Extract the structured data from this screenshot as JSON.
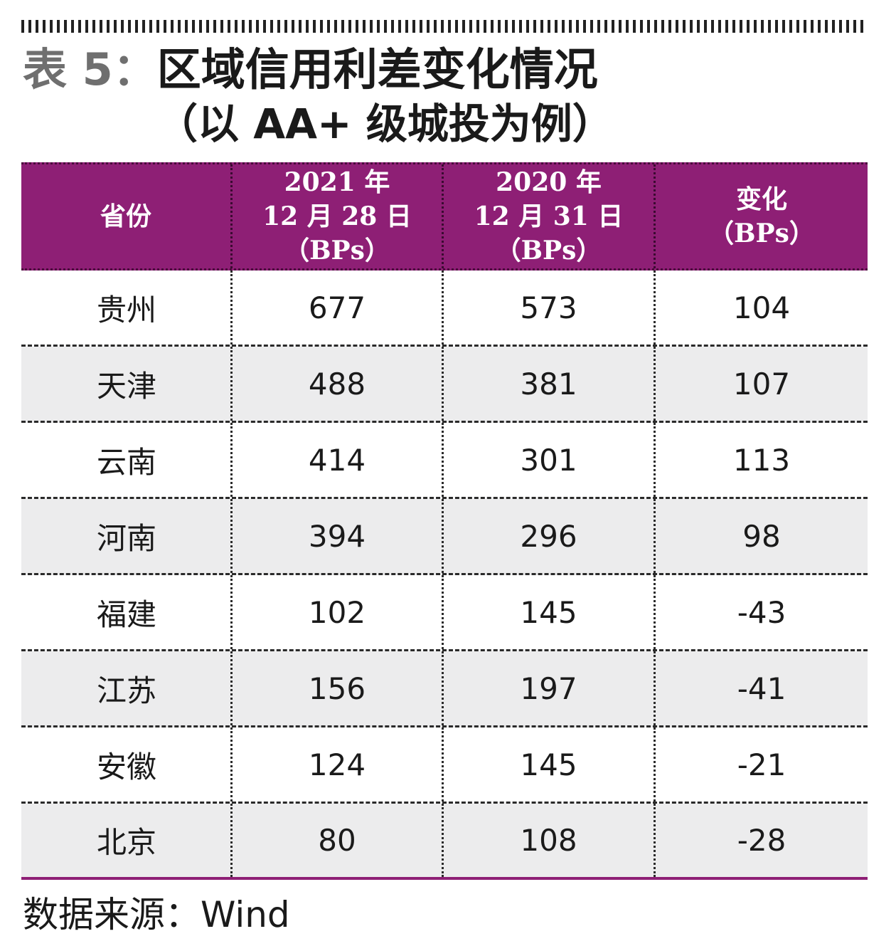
{
  "title": {
    "prefix": "表 5：",
    "main": "区域信用利差变化情况",
    "subtitle": "（以 AA+ 级城投为例）"
  },
  "table": {
    "headers": [
      {
        "lines": [
          "省份"
        ]
      },
      {
        "lines": [
          "2021 年",
          "12 月 28 日",
          "（BPs）"
        ]
      },
      {
        "lines": [
          "2020 年",
          "12 月 31 日",
          "（BPs）"
        ]
      },
      {
        "lines": [
          "变化",
          "（BPs）"
        ]
      }
    ],
    "rows": [
      {
        "province": "贵州",
        "v2021": "677",
        "v2020": "573",
        "change": "104"
      },
      {
        "province": "天津",
        "v2021": "488",
        "v2020": "381",
        "change": "107"
      },
      {
        "province": "云南",
        "v2021": "414",
        "v2020": "301",
        "change": "113"
      },
      {
        "province": "河南",
        "v2021": "394",
        "v2020": "296",
        "change": "98"
      },
      {
        "province": "福建",
        "v2021": "102",
        "v2020": "145",
        "change": "-43"
      },
      {
        "province": "江苏",
        "v2021": "156",
        "v2020": "197",
        "change": "-41"
      },
      {
        "province": "安徽",
        "v2021": "124",
        "v2020": "145",
        "change": "-21"
      },
      {
        "province": "北京",
        "v2021": "80",
        "v2020": "108",
        "change": "-28"
      }
    ]
  },
  "source": "数据来源：Wind",
  "colors": {
    "header_bg": "#8e1f75",
    "row_shade": "#ececed",
    "title_prefix": "#6f6f6f"
  }
}
